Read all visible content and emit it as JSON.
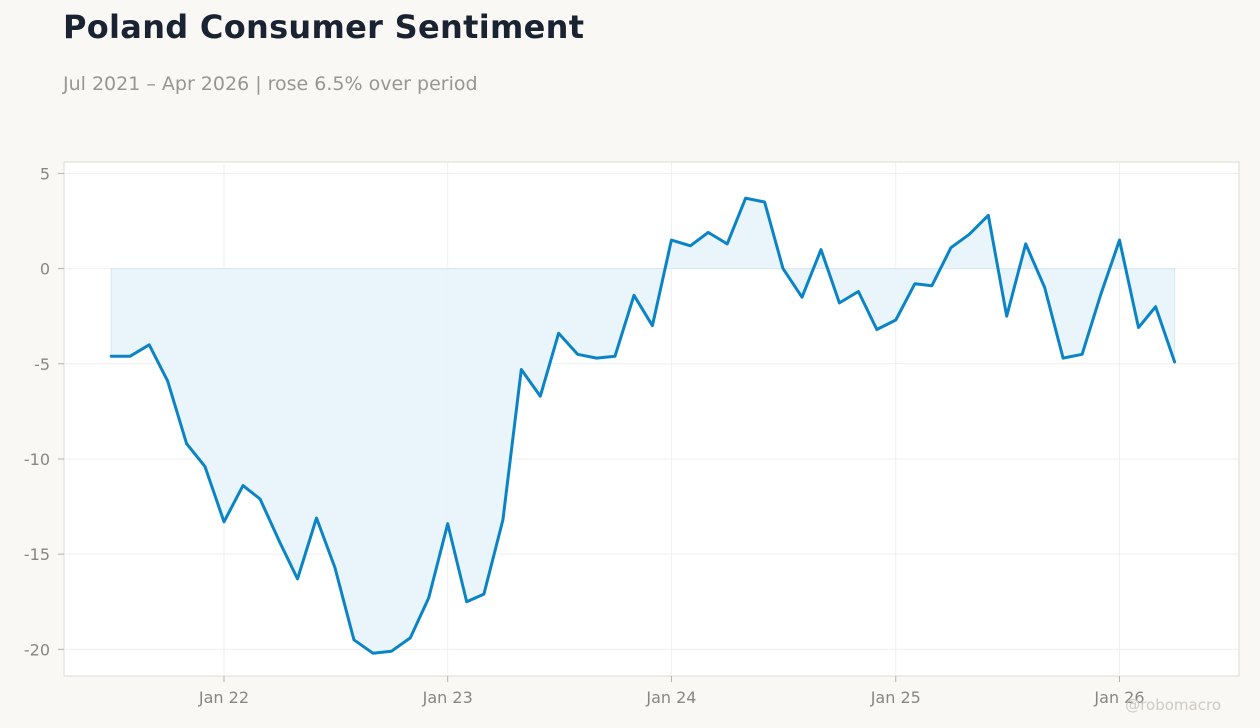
{
  "header": {
    "title": "Poland Consumer Sentiment",
    "subtitle": "Jul 2021 – Apr 2026 | rose 6.5% over period"
  },
  "watermark": "@robomacro",
  "colors": {
    "line": "#0a84c6",
    "fill": "#e8f3fb",
    "plot_bg": "#ffffff",
    "grid": "#efefef",
    "page_bg": "#f9f8f5"
  },
  "chart_data": {
    "type": "area",
    "title": "Poland Consumer Sentiment",
    "xlabel": "",
    "ylabel": "",
    "ylim": [
      -21.4,
      5.6
    ],
    "xlim": [
      "2021-04-15",
      "2026-07-15"
    ],
    "grid": true,
    "yticks": [
      5,
      0,
      -5,
      -10,
      -15,
      -20
    ],
    "xticks": [
      {
        "date": "2022-01-01",
        "label": "Jan 22"
      },
      {
        "date": "2023-01-01",
        "label": "Jan 23"
      },
      {
        "date": "2024-01-01",
        "label": "Jan 24"
      },
      {
        "date": "2025-01-01",
        "label": "Jan 25"
      },
      {
        "date": "2026-01-01",
        "label": "Jan 26"
      }
    ],
    "series": [
      {
        "x": [
          "2021-07",
          "2021-08",
          "2021-09",
          "2021-10",
          "2021-11",
          "2021-12",
          "2022-01",
          "2022-02",
          "2022-03",
          "2022-04",
          "2022-05",
          "2022-06",
          "2022-07",
          "2022-08",
          "2022-09",
          "2022-10",
          "2022-11",
          "2022-12",
          "2023-01",
          "2023-02",
          "2023-03",
          "2023-04",
          "2023-05",
          "2023-06",
          "2023-07",
          "2023-08",
          "2023-09",
          "2023-10",
          "2023-11",
          "2023-12",
          "2024-01",
          "2024-02",
          "2024-03",
          "2024-04",
          "2024-05",
          "2024-06",
          "2024-07",
          "2024-08",
          "2024-09",
          "2024-10",
          "2024-11",
          "2024-12",
          "2025-01",
          "2025-02",
          "2025-03",
          "2025-04",
          "2025-05",
          "2025-06",
          "2025-07",
          "2025-08",
          "2025-09",
          "2025-10",
          "2025-11",
          "2025-12",
          "2026-01",
          "2026-02",
          "2026-03",
          "2026-04"
        ],
        "values": [
          -4.6,
          -4.6,
          -4.0,
          -5.9,
          -9.2,
          -10.4,
          -13.3,
          -11.4,
          -12.1,
          -14.3,
          -16.3,
          -13.1,
          -15.7,
          -19.5,
          -20.2,
          -20.1,
          -19.4,
          -17.3,
          -13.4,
          -17.5,
          -17.1,
          -13.2,
          -5.3,
          -6.7,
          -3.4,
          -4.5,
          -4.7,
          -4.6,
          -1.4,
          -3.0,
          1.5,
          1.2,
          1.9,
          1.3,
          3.7,
          3.5,
          0.0,
          -1.5,
          1.0,
          -1.8,
          -1.2,
          -3.2,
          -2.7,
          -0.8,
          -0.9,
          1.1,
          1.8,
          2.8,
          -2.5,
          1.3,
          -1.0,
          -4.7,
          -4.5,
          -1.4,
          1.5,
          -3.1,
          -2.0,
          -4.9
        ]
      }
    ]
  }
}
